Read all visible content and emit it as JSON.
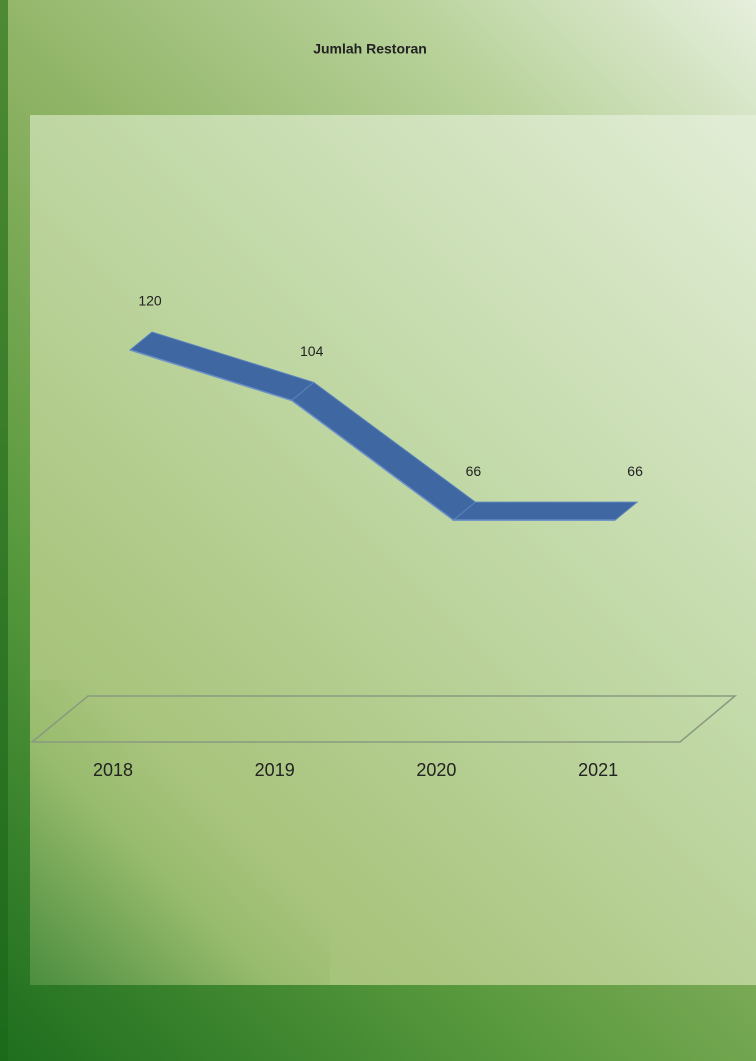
{
  "chart_data": {
    "type": "line3d",
    "title": "Jumlah Restoran",
    "categories": [
      "2018",
      "2019",
      "2020",
      "2021"
    ],
    "values": [
      120,
      104,
      66,
      66
    ],
    "color": "#3f68a3",
    "ylim": [
      0,
      200
    ]
  }
}
